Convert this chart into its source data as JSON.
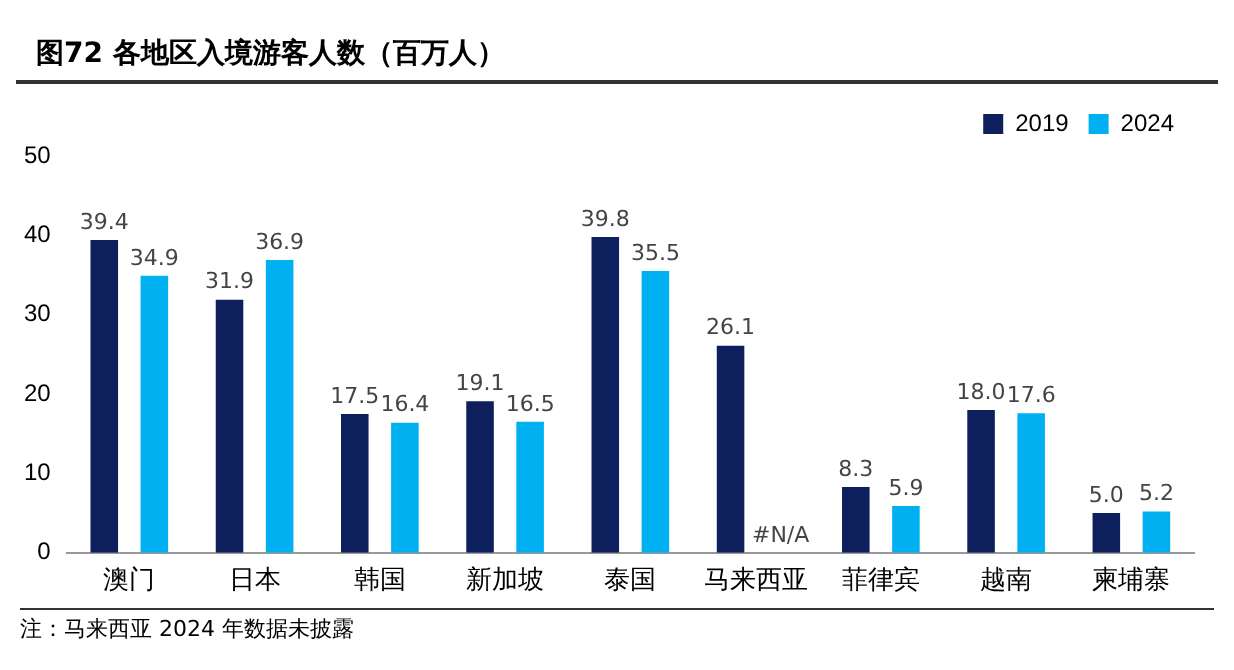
{
  "chart_data": {
    "type": "bar",
    "title": "图72  各地区入境游客人数（百万人）",
    "categories": [
      "澳门",
      "日本",
      "韩国",
      "新加坡",
      "泰国",
      "马来西亚",
      "菲律宾",
      "越南",
      "柬埔寨"
    ],
    "series": [
      {
        "name": "2019",
        "color": "#0d1f5c",
        "values": [
          39.4,
          31.9,
          17.5,
          19.1,
          39.8,
          26.1,
          8.3,
          18.0,
          5.0
        ],
        "value_labels": [
          "39.4",
          "31.9",
          "17.5",
          "19.1",
          "39.8",
          "26.1",
          "8.3",
          "18.0",
          "5.0"
        ]
      },
      {
        "name": "2024",
        "color": "#00b0f0",
        "values": [
          34.9,
          36.9,
          16.4,
          16.5,
          35.5,
          null,
          5.9,
          17.6,
          5.2
        ],
        "value_labels": [
          "34.9",
          "36.9",
          "16.4",
          "16.5",
          "35.5",
          "#N/A",
          "5.9",
          "17.6",
          "5.2"
        ]
      }
    ],
    "ylim": [
      0,
      50
    ],
    "yticks": [
      0,
      10,
      20,
      30,
      40,
      50
    ],
    "grid": false,
    "legend": "top right",
    "annotations": [
      "注：马来西亚 2024 年数据未披露"
    ]
  }
}
